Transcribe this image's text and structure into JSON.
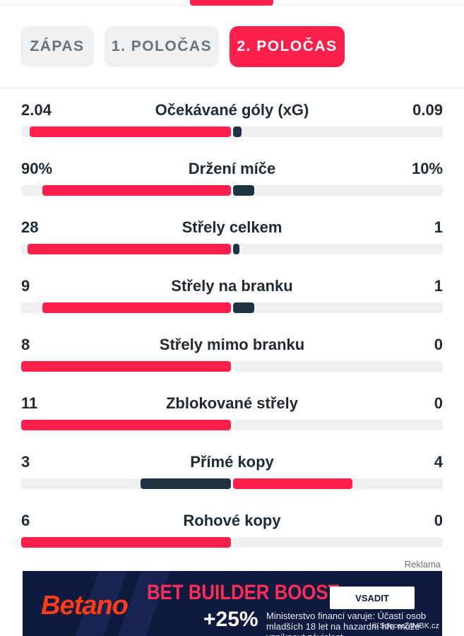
{
  "tabs": [
    {
      "label": "ZÁPAS",
      "active": false
    },
    {
      "label": "1. POLOČAS",
      "active": false
    },
    {
      "label": "2. POLOČAS",
      "active": true
    }
  ],
  "colors": {
    "accent": "#ff1f4c",
    "dark": "#1f3440",
    "track": "#eef0f1"
  },
  "stats": [
    {
      "name": "Očekávané góly (xG)",
      "home": "2.04",
      "away": "0.09",
      "home_share": 0.96,
      "away_share": 0.04,
      "home_winner": true
    },
    {
      "name": "Držení míče",
      "home": "90%",
      "away": "10%",
      "home_share": 0.9,
      "away_share": 0.1,
      "home_winner": true
    },
    {
      "name": "Střely celkem",
      "home": "28",
      "away": "1",
      "home_share": 0.97,
      "away_share": 0.03,
      "home_winner": true
    },
    {
      "name": "Střely na branku",
      "home": "9",
      "away": "1",
      "home_share": 0.9,
      "away_share": 0.1,
      "home_winner": true
    },
    {
      "name": "Střely mimo branku",
      "home": "8",
      "away": "0",
      "home_share": 1.0,
      "away_share": 0.0,
      "home_winner": true
    },
    {
      "name": "Zblokované střely",
      "home": "11",
      "away": "0",
      "home_share": 1.0,
      "away_share": 0.0,
      "home_winner": true
    },
    {
      "name": "Přímé kopy",
      "home": "3",
      "away": "4",
      "home_share": 0.43,
      "away_share": 0.57,
      "home_winner": false
    },
    {
      "name": "Rohové kopy",
      "home": "6",
      "away": "0",
      "home_share": 1.0,
      "away_share": 0.0,
      "home_winner": true
    }
  ],
  "ad": {
    "label": "Reklama",
    "brand": "Betano",
    "headline": "BET BUILDER BOOST",
    "boost": "+25%",
    "cta": "VSADIT",
    "disclaimer": "Ministerstvo financí varuje: Účastí osob mladších 18 let na hazardní hře může vzniknout závislost",
    "copyright": "© Soccer24MBK.cz"
  }
}
